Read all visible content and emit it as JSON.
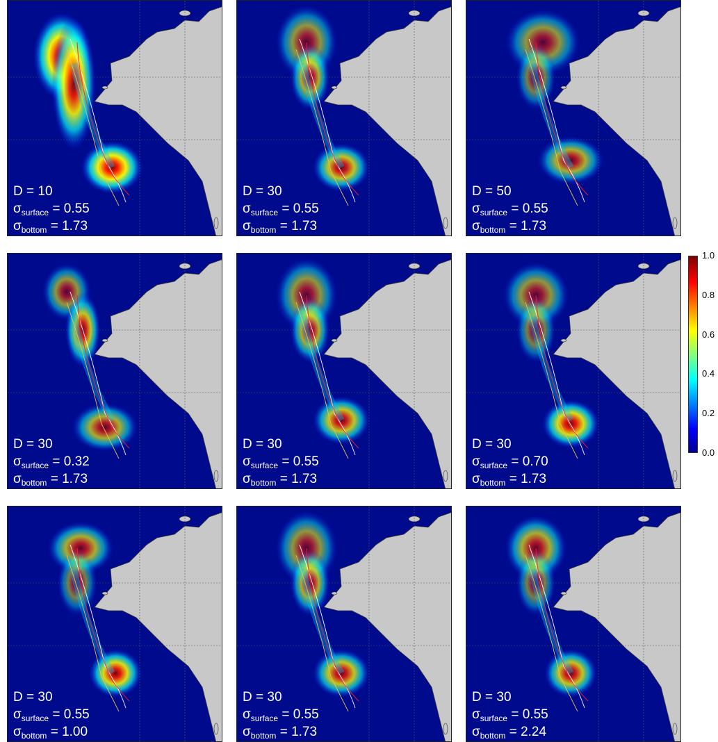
{
  "panels": [
    {
      "d_text": "D = 10",
      "sigma_surface": "0.55",
      "sigma_bottom": "1.73"
    },
    {
      "d_text": "D = 30",
      "sigma_surface": "0.55",
      "sigma_bottom": "1.73"
    },
    {
      "d_text": "D = 50",
      "sigma_surface": "0.55",
      "sigma_bottom": "1.73"
    },
    {
      "d_text": "D = 30",
      "sigma_surface": "0.32",
      "sigma_bottom": "1.73"
    },
    {
      "d_text": "D = 30",
      "sigma_surface": "0.55",
      "sigma_bottom": "1.73"
    },
    {
      "d_text": "D = 30",
      "sigma_surface": "0.70",
      "sigma_bottom": "1.73"
    },
    {
      "d_text": "D = 30",
      "sigma_surface": "0.55",
      "sigma_bottom": "1.00"
    },
    {
      "d_text": "D = 30",
      "sigma_surface": "0.55",
      "sigma_bottom": "1.73"
    },
    {
      "d_text": "D = 30",
      "sigma_surface": "0.55",
      "sigma_bottom": "2.24"
    }
  ],
  "symbols": {
    "sigma": "σ",
    "surface_sub": "surface",
    "bottom_sub": "bottom",
    "equals": " = "
  },
  "colorbar": {
    "ticks": [
      "1.0",
      "0.8",
      "0.6",
      "0.4",
      "0.2",
      "0.0"
    ],
    "colors": [
      "#00008f",
      "#0000ff",
      "#00ffff",
      "#ffff00",
      "#ff0000",
      "#800000"
    ]
  },
  "style": {
    "ocean_color": "#000a8c",
    "land_color": "#c8c8c8",
    "track_colors": [
      "#ffffff",
      "#ff2020",
      "#e6c84a"
    ]
  }
}
